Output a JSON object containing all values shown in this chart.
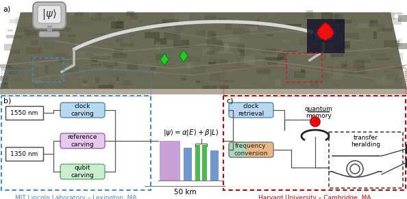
{
  "fig_width": 5.94,
  "fig_height": 2.91,
  "dpi": 100,
  "bg_color": "#ffffff",
  "panel_a_label": "a)",
  "panel_b_label": "b)",
  "panel_c_label": "c)",
  "map_color": "#5a5a4a",
  "map_top_color": "#4a4a3a",
  "left_box_edge": "#4488cc",
  "right_box_edge": "#cc0000",
  "clock_carving_color": "#b8d8f0",
  "reference_carving_color": "#e8c8f0",
  "qubit_carving_color": "#c8f0d0",
  "clock_retrieval_color": "#b8d8f0",
  "bar_purple": "#c8a0d8",
  "bar_blue": "#7098d0",
  "bar_green": "#50b850",
  "label_mit": "MIT Lincoln Laboratory – Lexington, MA",
  "label_harvard": "Harvard University – Cambridge, MA",
  "label_mit_color": "#4488cc",
  "label_harvard_color": "#cc0000",
  "distance_label": "50 km",
  "quantum_memory_label": "quantum\nmemory",
  "transfer_heralding_label": "transfer\nheralding",
  "nm1550": "1550 nm",
  "nm1350": "1350 nm",
  "clock_carving": "clock\ncarving",
  "reference_carving": "reference\ncarving",
  "qubit_carving": "qubit\ncarving",
  "clock_retrieval": "clock\nretrieval",
  "frequency_conversion": "frequency\nconversion",
  "wire_color": "#555555",
  "wire_lw": 0.9
}
